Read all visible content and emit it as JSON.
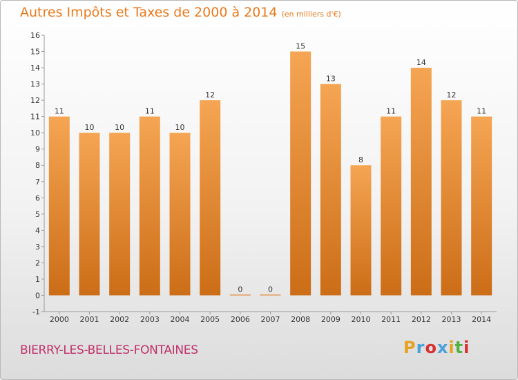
{
  "chart_data": {
    "type": "bar",
    "title": "Autres Impôts et Taxes de 2000 à 2014",
    "subtitle": "(en milliers d'€)",
    "categories": [
      "2000",
      "2001",
      "2002",
      "2003",
      "2004",
      "2005",
      "2006",
      "2007",
      "2008",
      "2009",
      "2010",
      "2011",
      "2012",
      "2013",
      "2014"
    ],
    "values": [
      11,
      10,
      10,
      11,
      10,
      12,
      0,
      0,
      15,
      13,
      8,
      11,
      14,
      12,
      11
    ],
    "data_labels": [
      "11",
      "10",
      "10",
      "11",
      "10",
      "12",
      "0",
      "0",
      "15",
      "13",
      "8",
      "11",
      "14",
      "12",
      "11"
    ],
    "ylim": [
      -1,
      16
    ],
    "yticks": [
      -1,
      0,
      1,
      2,
      3,
      4,
      5,
      6,
      7,
      8,
      9,
      10,
      11,
      12,
      13,
      14,
      15,
      16
    ],
    "grid": false,
    "bar_color": "#f0963a"
  },
  "footer": {
    "commune": "BIERRY-LES-BELLES-FONTAINES",
    "logo_text": "Proxiti",
    "logo_colors": [
      "#e8a020",
      "#4aa0d8",
      "#d83030",
      "#4aa0d8",
      "#e8a020",
      "#50b040",
      "#d83030"
    ]
  }
}
